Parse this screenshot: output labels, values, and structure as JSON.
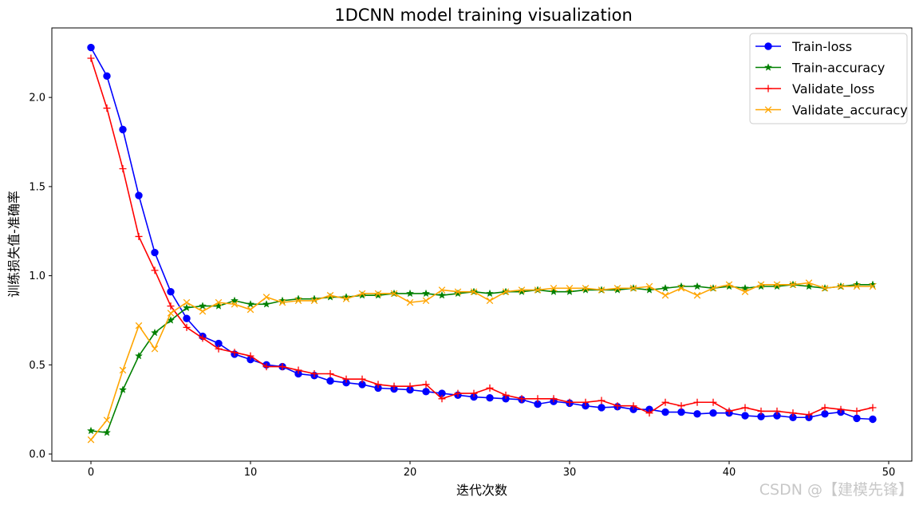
{
  "chart_data": {
    "type": "line",
    "title": "1DCNN model training visualization",
    "xlabel": "迭代次数",
    "ylabel": "训练损失值-准确率",
    "xlim": [
      -2.45,
      51.45
    ],
    "ylim": [
      -0.04,
      2.39
    ],
    "xticks": [
      0,
      10,
      20,
      30,
      40,
      50
    ],
    "yticks": [
      0.0,
      0.5,
      1.0,
      1.5,
      2.0
    ],
    "xtick_labels": [
      "0",
      "10",
      "20",
      "30",
      "40",
      "50"
    ],
    "ytick_labels": [
      "0.0",
      "0.5",
      "1.0",
      "1.5",
      "2.0"
    ],
    "legend_position": "top-right",
    "x": [
      0,
      1,
      2,
      3,
      4,
      5,
      6,
      7,
      8,
      9,
      10,
      11,
      12,
      13,
      14,
      15,
      16,
      17,
      18,
      19,
      20,
      21,
      22,
      23,
      24,
      25,
      26,
      27,
      28,
      29,
      30,
      31,
      32,
      33,
      34,
      35,
      36,
      37,
      38,
      39,
      40,
      41,
      42,
      43,
      44,
      45,
      46,
      47,
      48,
      49
    ],
    "series": [
      {
        "name": "Train-loss",
        "color": "#0000ff",
        "marker": "circle",
        "values": [
          2.28,
          2.12,
          1.82,
          1.45,
          1.13,
          0.91,
          0.76,
          0.66,
          0.62,
          0.56,
          0.53,
          0.5,
          0.49,
          0.45,
          0.44,
          0.41,
          0.4,
          0.39,
          0.37,
          0.365,
          0.36,
          0.35,
          0.34,
          0.33,
          0.32,
          0.315,
          0.31,
          0.305,
          0.28,
          0.295,
          0.285,
          0.27,
          0.26,
          0.265,
          0.25,
          0.25,
          0.235,
          0.235,
          0.225,
          0.23,
          0.23,
          0.215,
          0.21,
          0.215,
          0.205,
          0.205,
          0.225,
          0.235,
          0.2,
          0.195
        ]
      },
      {
        "name": "Train-accuracy",
        "color": "#008000",
        "marker": "star",
        "values": [
          0.13,
          0.12,
          0.36,
          0.55,
          0.68,
          0.75,
          0.82,
          0.83,
          0.83,
          0.86,
          0.84,
          0.84,
          0.86,
          0.87,
          0.87,
          0.88,
          0.88,
          0.89,
          0.89,
          0.9,
          0.9,
          0.9,
          0.89,
          0.9,
          0.91,
          0.9,
          0.91,
          0.91,
          0.92,
          0.91,
          0.91,
          0.92,
          0.92,
          0.92,
          0.93,
          0.92,
          0.93,
          0.94,
          0.94,
          0.93,
          0.94,
          0.93,
          0.94,
          0.94,
          0.95,
          0.94,
          0.93,
          0.94,
          0.95,
          0.95
        ]
      },
      {
        "name": "Validate_loss",
        "color": "#ff0000",
        "marker": "plus",
        "values": [
          2.22,
          1.94,
          1.6,
          1.22,
          1.03,
          0.83,
          0.71,
          0.65,
          0.59,
          0.57,
          0.55,
          0.49,
          0.49,
          0.47,
          0.45,
          0.45,
          0.42,
          0.42,
          0.39,
          0.38,
          0.38,
          0.39,
          0.31,
          0.34,
          0.34,
          0.37,
          0.33,
          0.31,
          0.31,
          0.31,
          0.29,
          0.29,
          0.3,
          0.27,
          0.27,
          0.23,
          0.29,
          0.27,
          0.29,
          0.29,
          0.24,
          0.26,
          0.24,
          0.24,
          0.23,
          0.22,
          0.26,
          0.25,
          0.24,
          0.26
        ]
      },
      {
        "name": "Validate_accuracy",
        "color": "#ffa500",
        "marker": "x",
        "values": [
          0.08,
          0.19,
          0.47,
          0.72,
          0.59,
          0.79,
          0.85,
          0.8,
          0.85,
          0.84,
          0.81,
          0.88,
          0.85,
          0.86,
          0.86,
          0.89,
          0.87,
          0.9,
          0.9,
          0.9,
          0.85,
          0.86,
          0.92,
          0.91,
          0.91,
          0.86,
          0.91,
          0.92,
          0.92,
          0.93,
          0.93,
          0.93,
          0.92,
          0.93,
          0.93,
          0.94,
          0.89,
          0.93,
          0.89,
          0.93,
          0.95,
          0.91,
          0.95,
          0.95,
          0.95,
          0.96,
          0.93,
          0.94,
          0.94,
          0.94
        ]
      }
    ]
  },
  "watermark": "CSDN @【建模先锋】"
}
